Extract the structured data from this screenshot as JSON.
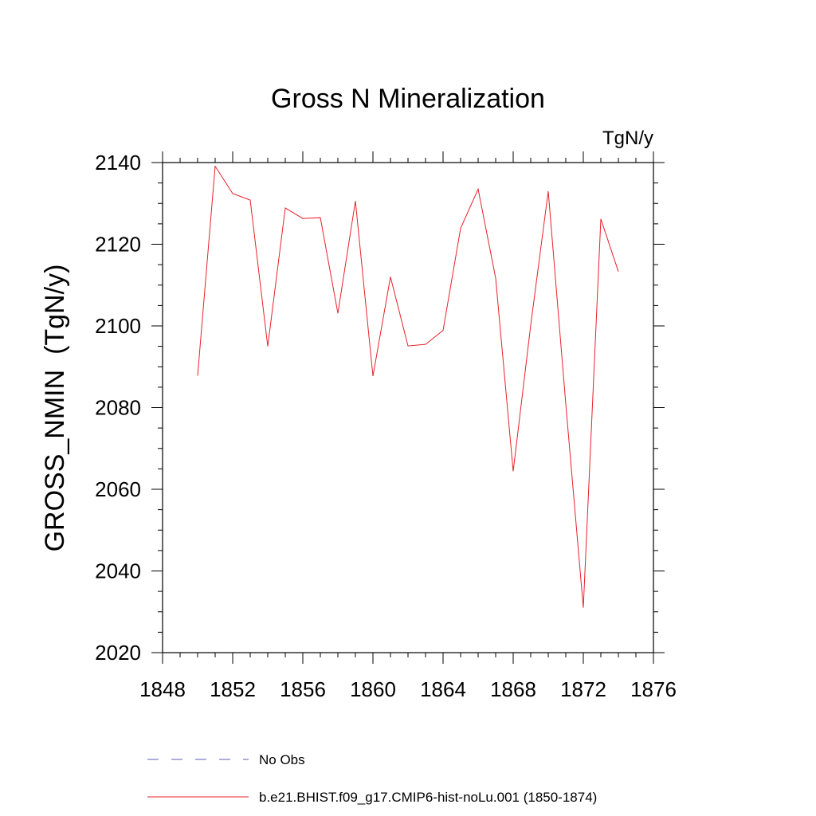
{
  "chart_data": {
    "type": "line",
    "title": "Gross N Mineralization",
    "units": "TgN/y",
    "ylabel": "GROSS_NMIN  (TgN/y)",
    "xlabel": "",
    "xlim": [
      1848,
      1876
    ],
    "ylim": [
      2020,
      2140
    ],
    "x_ticks": [
      1848,
      1852,
      1856,
      1860,
      1864,
      1868,
      1872,
      1876
    ],
    "x_tick_labels": [
      "1848",
      "1852",
      "1856",
      "1860",
      "1864",
      "1868",
      "1872",
      "1876"
    ],
    "y_ticks": [
      2020,
      2040,
      2060,
      2080,
      2100,
      2120,
      2140
    ],
    "y_tick_labels": [
      "2020",
      "2040",
      "2060",
      "2080",
      "2100",
      "2120",
      "2140"
    ],
    "x_minor_step": 1,
    "y_minor_step": 5,
    "grid": false,
    "legend_position": "bottom",
    "series": [
      {
        "name": "No Obs",
        "color": "#5c5cb8",
        "dash": "dashed",
        "x": [],
        "y": []
      },
      {
        "name": "b.e21.BHIST.f09_g17.CMIP6-hist-noLu.001 (1850-1874)",
        "color": "#e8202a",
        "dash": "solid",
        "x": [
          1850,
          1851,
          1852,
          1853,
          1854,
          1855,
          1856,
          1857,
          1858,
          1859,
          1860,
          1861,
          1862,
          1863,
          1864,
          1865,
          1866,
          1867,
          1868,
          1869,
          1870,
          1871,
          1872,
          1873,
          1874
        ],
        "y": [
          2087.8,
          2139.1,
          2132.4,
          2130.8,
          2095.0,
          2128.9,
          2126.3,
          2126.5,
          2103.1,
          2130.6,
          2087.7,
          2112.0,
          2095.1,
          2095.5,
          2098.9,
          2123.9,
          2133.5,
          2111.7,
          2064.4,
          2100.2,
          2133.0,
          2080.9,
          2031.0,
          2126.2,
          2113.3
        ]
      }
    ]
  }
}
